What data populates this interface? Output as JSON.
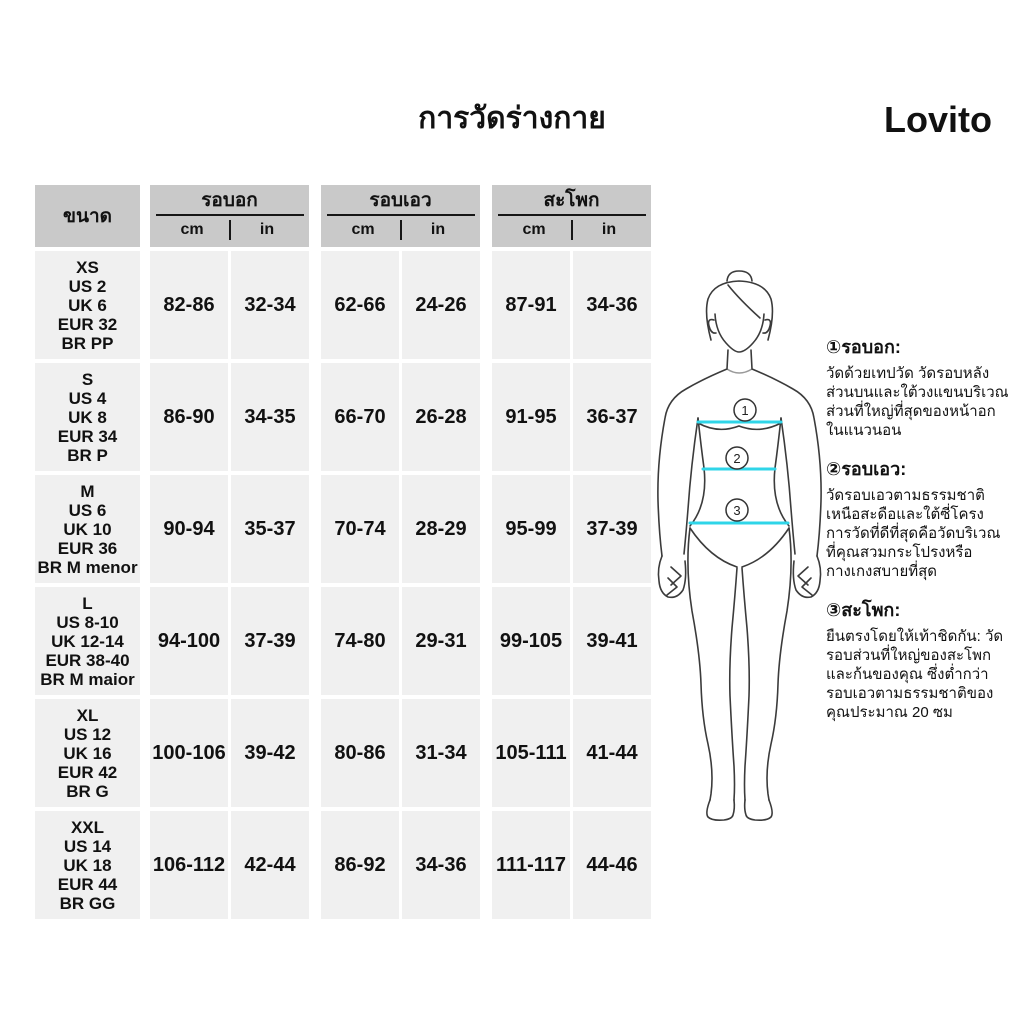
{
  "page": {
    "title": "การวัดร่างกาย",
    "brand": "Lovito"
  },
  "table": {
    "size_header": "ขนาด",
    "groups": [
      {
        "label": "รอบอก",
        "units": [
          "cm",
          "in"
        ]
      },
      {
        "label": "รอบเอว",
        "units": [
          "cm",
          "in"
        ]
      },
      {
        "label": "สะโพก",
        "units": [
          "cm",
          "in"
        ]
      }
    ],
    "rows": [
      {
        "size_lines": [
          "XS",
          "US 2",
          "UK 6",
          "EUR 32",
          "BR PP"
        ],
        "values": [
          "82-86",
          "32-34",
          "62-66",
          "24-26",
          "87-91",
          "34-36"
        ]
      },
      {
        "size_lines": [
          "S",
          "US 4",
          "UK 8",
          "EUR 34",
          "BR P"
        ],
        "values": [
          "86-90",
          "34-35",
          "66-70",
          "26-28",
          "91-95",
          "36-37"
        ]
      },
      {
        "size_lines": [
          "M",
          "US 6",
          "UK 10",
          "EUR 36",
          "BR M menor"
        ],
        "values": [
          "90-94",
          "35-37",
          "70-74",
          "28-29",
          "95-99",
          "37-39"
        ]
      },
      {
        "size_lines": [
          "L",
          "US 8-10",
          "UK 12-14",
          "EUR 38-40",
          "BR M maior"
        ],
        "values": [
          "94-100",
          "37-39",
          "74-80",
          "29-31",
          "99-105",
          "39-41"
        ]
      },
      {
        "size_lines": [
          "XL",
          "US 12",
          "UK 16",
          "EUR 42",
          "BR G"
        ],
        "values": [
          "100-106",
          "39-42",
          "80-86",
          "31-34",
          "105-111",
          "41-44"
        ]
      },
      {
        "size_lines": [
          "XXL",
          "US 14",
          "UK 18",
          "EUR 44",
          "BR GG"
        ],
        "values": [
          "106-112",
          "42-44",
          "86-92",
          "34-36",
          "111-117",
          "44-46"
        ]
      }
    ]
  },
  "figure": {
    "labels": [
      "1",
      "2",
      "3"
    ],
    "line_color": "#2fd5e8"
  },
  "notes": [
    {
      "heading": "①รอบอก:",
      "body": "วัดด้วยเทปวัด วัดรอบหลัง\nส่วนบนและใต้วงแขนบริเวณ\nส่วนที่ใหญ่ที่สุดของหน้าอก\nในแนวนอน"
    },
    {
      "heading": "②รอบเอว:",
      "body": "วัดรอบเอวตามธรรมชาติ\nเหนือสะดือและใต้ซี่โครง\nการวัดที่ดีที่สุดคือวัดบริเวณ\nที่คุณสวมกระโปรงหรือ\nกางเกงสบายที่สุด"
    },
    {
      "heading": "③สะโพก:",
      "body": "ยืนตรงโดยให้เท้าชิดกัน: วัด\nรอบส่วนที่ใหญ่ของสะโพก\nและก้นของคุณ ซึ่งต่ำกว่า\nรอบเอวตามธรรมชาติของ\nคุณประมาณ 20 ซม"
    }
  ],
  "colors": {
    "header_bg": "#c9c9c9",
    "cell_bg": "#f0f0f0",
    "accent_line": "#2fd5e8",
    "text": "#111111"
  }
}
